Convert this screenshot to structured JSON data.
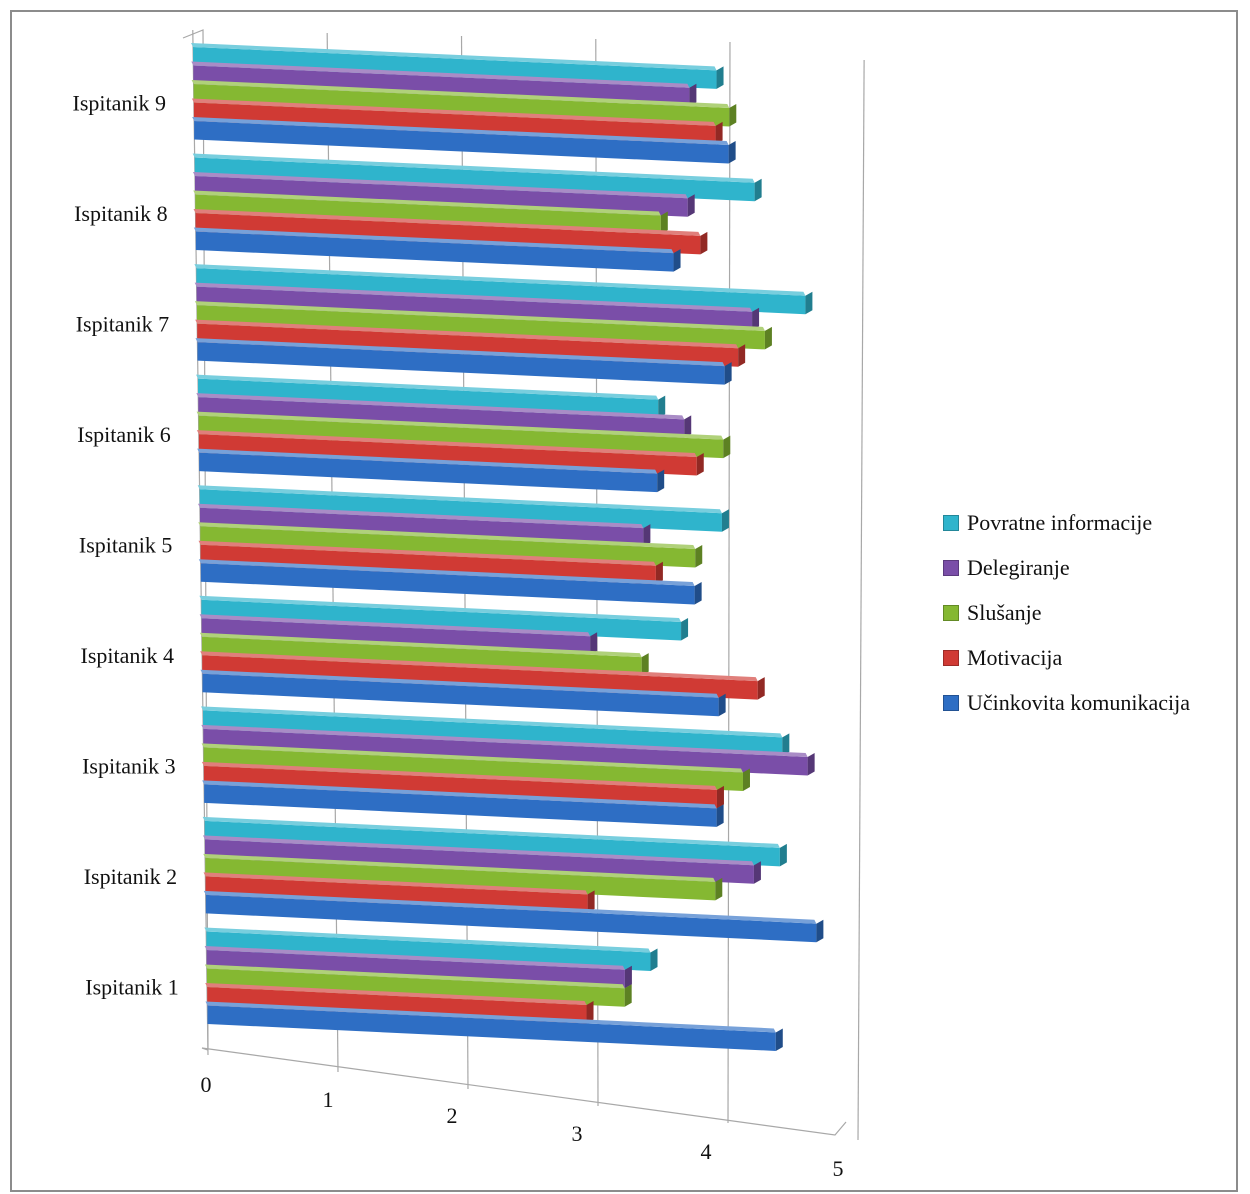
{
  "chart_data": {
    "type": "bar",
    "orientation": "horizontal",
    "categories": [
      "Ispitanik 1",
      "Ispitanik 2",
      "Ispitanik 3",
      "Ispitanik 4",
      "Ispitanik 5",
      "Ispitanik 6",
      "Ispitanik 7",
      "Ispitanik 8",
      "Ispitanik 9"
    ],
    "series": [
      {
        "name": "Učinkovita komunikacija",
        "color": "#2e6ec4",
        "values": [
          4.5,
          4.8,
          4.0,
          4.0,
          3.8,
          3.5,
          4.0,
          3.6,
          4.0
        ]
      },
      {
        "name": "Motivacija",
        "color": "#d03a34",
        "values": [
          3.0,
          3.0,
          4.0,
          4.3,
          3.5,
          3.8,
          4.1,
          3.8,
          3.9
        ]
      },
      {
        "name": "Slušanje",
        "color": "#85b832",
        "values": [
          3.3,
          4.0,
          4.2,
          3.4,
          3.8,
          4.0,
          4.3,
          3.5,
          4.0
        ]
      },
      {
        "name": "Delegiranje",
        "color": "#7a4ea8",
        "values": [
          3.3,
          4.3,
          4.7,
          3.0,
          3.4,
          3.7,
          4.2,
          3.7,
          3.7
        ]
      },
      {
        "name": "Povratne informacije",
        "color": "#2fb4cc",
        "values": [
          3.5,
          4.5,
          4.5,
          3.7,
          4.0,
          3.5,
          4.6,
          4.2,
          3.9
        ]
      }
    ],
    "xlim": [
      0,
      5
    ],
    "xticks": [
      "0",
      "1",
      "2",
      "3",
      "4",
      "5"
    ],
    "grid": true,
    "legend_position": "right",
    "title": "",
    "xlabel": "",
    "ylabel": ""
  }
}
